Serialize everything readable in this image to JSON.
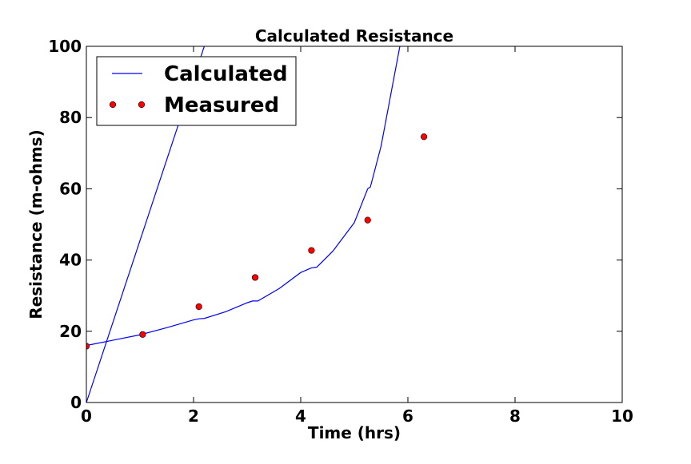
{
  "chart_data": {
    "type": "line",
    "title": "Calculated Resistance",
    "xlabel": "Time (hrs)",
    "ylabel": "Resistance (m-ohms)",
    "xlim": [
      0,
      10
    ],
    "ylim": [
      0,
      100
    ],
    "x_ticks": [
      "0",
      "2",
      "4",
      "6",
      "8",
      "10"
    ],
    "y_ticks": [
      "0",
      "20",
      "40",
      "60",
      "80",
      "100"
    ],
    "grid": false,
    "legend_position": "top-left",
    "series": [
      {
        "name": "Calculated",
        "style": "line",
        "color": "#0000ff",
        "x": [
          0,
          2.2
        ],
        "y": [
          0,
          100
        ]
      },
      {
        "name": "Calculated",
        "style": "line",
        "color": "#0000ff",
        "x": [
          0,
          0.5,
          1.0,
          1.5,
          2.0,
          2.1,
          2.2,
          2.6,
          3.0,
          3.1,
          3.2,
          3.6,
          4.0,
          4.2,
          4.3,
          4.6,
          5.0,
          5.25,
          5.3,
          5.5,
          5.7,
          5.85
        ],
        "y": [
          16,
          17.5,
          19,
          21,
          23.2,
          23.5,
          23.6,
          25.5,
          28,
          28.5,
          28.5,
          32,
          36.5,
          37.8,
          38,
          42.5,
          50.5,
          60,
          60.5,
          72,
          88,
          100
        ]
      },
      {
        "name": "Measured",
        "style": "markers",
        "color": "#ff0000",
        "x": [
          0.0,
          1.05,
          2.1,
          3.15,
          4.2,
          5.25,
          6.3
        ],
        "y": [
          15.8,
          19.1,
          26.9,
          35.1,
          42.7,
          51.2,
          74.6
        ]
      }
    ],
    "legend": [
      {
        "label": "Calculated",
        "kind": "line",
        "color": "#0000ff"
      },
      {
        "label": "Measured",
        "kind": "markers",
        "color": "#ff0000"
      }
    ]
  }
}
